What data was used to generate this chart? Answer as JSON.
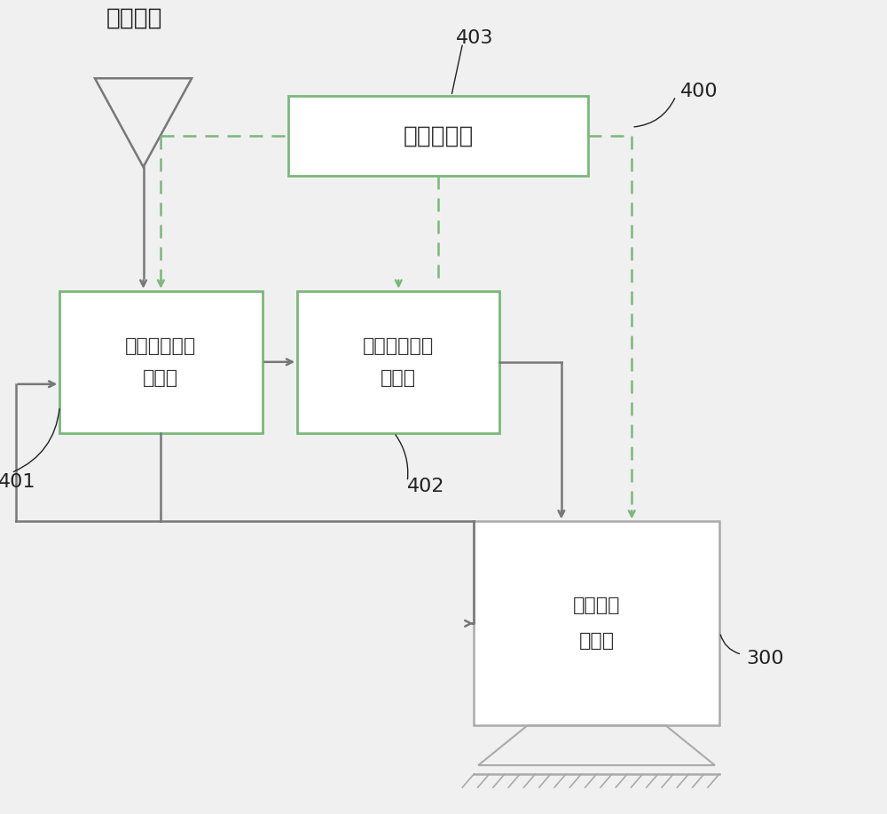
{
  "bg_color": "#f0f0f0",
  "box_color": "#ffffff",
  "box_edge_green": "#7ab87a",
  "box_edge_gray": "#aaaaaa",
  "line_color": "#777777",
  "dashed_color": "#7ab87a",
  "label_color": "#222222",
  "title_top": "涂布浆料",
  "box_central": "中央控制器",
  "box_temp_line1": "温度（粘度）",
  "box_temp_line2": "控制器",
  "box_flow_line1": "流量（压力）",
  "box_flow_line2": "控制器",
  "box_extrude_line1": "可控条缝",
  "box_extrude_line2": "挤压器",
  "label_401": "401",
  "label_402": "402",
  "label_403": "403",
  "label_400": "400",
  "label_300": "300"
}
